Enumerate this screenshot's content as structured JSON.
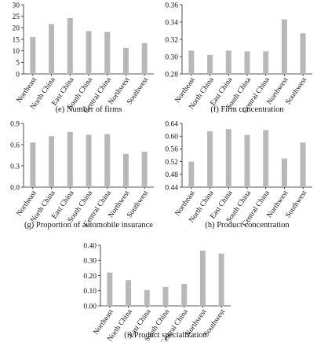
{
  "chart_data": [
    {
      "type": "bar",
      "caption": "(e) Number of firms",
      "categories": [
        "Northeast",
        "North China",
        "East China",
        "South China",
        "Central China",
        "Northwest",
        "Southwest"
      ],
      "values": [
        16,
        21.6,
        24.2,
        18.6,
        18.2,
        11.3,
        13.4
      ],
      "ylim": [
        0,
        30
      ],
      "yticks": [
        "0",
        "5",
        "10",
        "15",
        "20",
        "25",
        "30"
      ],
      "yticks_v": [
        0,
        5,
        10,
        15,
        20,
        25,
        30
      ],
      "bar_color": "#b8b8b8"
    },
    {
      "type": "bar",
      "caption": "(f) Firm concentration",
      "categories": [
        "Northeast",
        "North China",
        "East China",
        "South China",
        "Central China",
        "Northwest",
        "Southwest"
      ],
      "values": [
        0.307,
        0.302,
        0.307,
        0.306,
        0.306,
        0.343,
        0.327
      ],
      "ylim": [
        0.28,
        0.36
      ],
      "yticks": [
        "0.28",
        "0.30",
        "0.32",
        "0.34",
        "0.36"
      ],
      "yticks_v": [
        0.28,
        0.3,
        0.32,
        0.34,
        0.36
      ],
      "bar_color": "#b8b8b8"
    },
    {
      "type": "bar",
      "caption": "(g) Proportion of automobile insurance",
      "categories": [
        "Northeast",
        "North China",
        "East China",
        "South China",
        "Central China",
        "Northwest",
        "Southwest"
      ],
      "values": [
        0.63,
        0.72,
        0.78,
        0.74,
        0.75,
        0.47,
        0.5
      ],
      "ylim": [
        0,
        0.9
      ],
      "yticks": [
        "0.0",
        "0.3",
        "0.6",
        "0.9"
      ],
      "yticks_v": [
        0,
        0.3,
        0.6,
        0.9
      ],
      "bar_color": "#b8b8b8"
    },
    {
      "type": "bar",
      "caption": "(h) Product concentration",
      "categories": [
        "Northeast",
        "North China",
        "East China",
        "South China",
        "Central China",
        "Northwest",
        "Southwest"
      ],
      "values": [
        0.52,
        0.615,
        0.622,
        0.604,
        0.619,
        0.53,
        0.58
      ],
      "ylim": [
        0.44,
        0.64
      ],
      "yticks": [
        "0.44",
        "0.48",
        "0.52",
        "0.56",
        "0.60",
        "0.64"
      ],
      "yticks_v": [
        0.44,
        0.48,
        0.52,
        0.56,
        0.6,
        0.64
      ],
      "bar_color": "#b8b8b8"
    },
    {
      "type": "bar",
      "caption": "(i) Product specialization",
      "categories": [
        "Northeast",
        "North China",
        "East China",
        "South China",
        "Central China",
        "Northwest",
        "Southwest"
      ],
      "values": [
        0.22,
        0.17,
        0.105,
        0.125,
        0.145,
        0.365,
        0.345
      ],
      "ylim": [
        0,
        0.4
      ],
      "yticks": [
        "0.00",
        "0.10",
        "0.20",
        "0.30",
        "0.40"
      ],
      "yticks_v": [
        0,
        0.1,
        0.2,
        0.3,
        0.4
      ],
      "bar_color": "#b8b8b8"
    }
  ]
}
